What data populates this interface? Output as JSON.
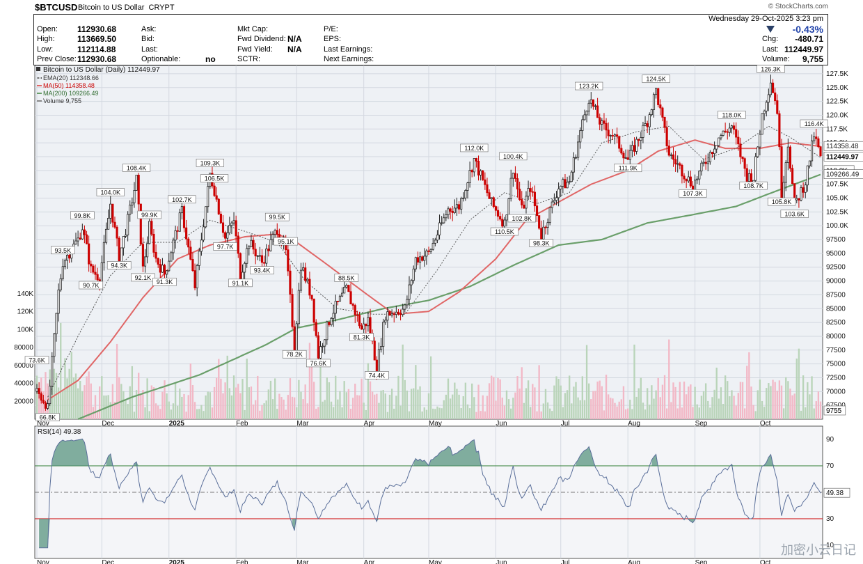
{
  "header": {
    "symbol": "$BTCUSD",
    "name": "Bitcoin to US Dollar",
    "exchange": "CRYPT",
    "watermark": "© StockCharts.com",
    "datetime": "Wednesday  29-Oct-2025  3:23 pm"
  },
  "quote": {
    "open_label": "Open:",
    "open": "112930.68",
    "high_label": "High:",
    "high": "113669.50",
    "low_label": "Low:",
    "low": "112114.88",
    "prevclose_label": "Prev Close:",
    "prevclose": "112930.68",
    "ask_label": "Ask:",
    "bid_label": "Bid:",
    "last_label_mid": "Last:",
    "optionable_label": "Optionable:",
    "optionable": "no",
    "mktcap_label": "Mkt Cap:",
    "fwddiv_label": "Fwd Dividend:",
    "fwddiv": "N/A",
    "fwdyield_label": "Fwd Yield:",
    "fwdyield": "N/A",
    "sctr_label": "SCTR:",
    "pe_label": "P/E:",
    "eps_label": "EPS:",
    "lastearn_label": "Last Earnings:",
    "nextearn_label": "Next Earnings:",
    "chg_pct": "-0.43%",
    "chg_label": "Chg:",
    "chg": "-480.71",
    "last_label": "Last:",
    "last": "112449.97",
    "volume_label": "Volume:",
    "volume": "9,755"
  },
  "colors": {
    "up": "#2e7d32",
    "down": "#cc0000",
    "ema": "#555555",
    "ma50": "#e06666",
    "ma200": "#6a9f6a",
    "rsi": "#5a6f9a",
    "rsi_fill": "#4f8f78",
    "bg_price": "#eef1f5",
    "bg_rsi": "#f4f5f8",
    "vol_up": "#b9d4b9",
    "vol_down": "#f2b8c6"
  },
  "watermark_bottom": "加密小云日记",
  "chart_data": {
    "type": "line",
    "title": "Bitcoin to US Dollar (Daily) 112449.97",
    "price_axis": {
      "ticks": [
        "127.5K",
        "125.0K",
        "122.5K",
        "120.0K",
        "117.5K",
        "115.0K",
        "112.5K",
        "110.0K",
        "107.5K",
        "105.0K",
        "102.5K",
        "100.0K",
        "97500",
        "95000",
        "92500",
        "90000",
        "87500",
        "85000",
        "82500",
        "80000",
        "77500",
        "75000",
        "72500",
        "70000",
        "67500"
      ],
      "range": [
        65000,
        129000
      ]
    },
    "volume_axis": {
      "ticks": [
        "140K",
        "120K",
        "100K",
        "80000",
        "60000",
        "40000",
        "20000"
      ],
      "range": [
        0,
        140000
      ]
    },
    "x_labels": [
      "Nov",
      "Dec",
      "2025",
      "Feb",
      "Mar",
      "Apr",
      "May",
      "Jun",
      "Jul",
      "Aug",
      "Sep",
      "Oct"
    ],
    "legend": [
      {
        "name": "EMA(20) 112348.66"
      },
      {
        "name": "MA(50) 114358.48"
      },
      {
        "name": "MA(200) 109266.49"
      },
      {
        "name": "Volume 9,755"
      }
    ],
    "series": [
      {
        "name": "Bitcoin to US Dollar (Daily) 112449.97",
        "points": [
          [
            "Nov 1",
            70000
          ],
          [
            "Nov 5",
            68000
          ],
          [
            "Nov 6",
            66800
          ],
          [
            "Nov 11",
            88000
          ],
          [
            "Nov 13",
            93500
          ],
          [
            "Nov 20",
            97500
          ],
          [
            "Nov 22",
            99800
          ],
          [
            "Nov 26",
            92000
          ],
          [
            "Nov 30",
            90700
          ],
          [
            "Dec 5",
            104000
          ],
          [
            "Dec 9",
            94300
          ],
          [
            "Dec 13",
            101000
          ],
          [
            "Dec 17",
            108400
          ],
          [
            "Dec 20",
            92100
          ],
          [
            "Dec 23",
            99900
          ],
          [
            "Dec 26",
            94000
          ],
          [
            "Dec 30",
            91300
          ],
          [
            "Jan 3",
            97000
          ],
          [
            "Jan 7",
            102700
          ],
          [
            "Jan 13",
            89000
          ],
          [
            "Jan 20",
            109300
          ],
          [
            "Jan 22",
            106500
          ],
          [
            "Jan 27",
            97700
          ],
          [
            "Jan 31",
            101000
          ],
          [
            "Feb 3",
            91100
          ],
          [
            "Feb 7",
            97000
          ],
          [
            "Feb 13",
            93400
          ],
          [
            "Feb 20",
            99500
          ],
          [
            "Feb 24",
            95100
          ],
          [
            "Feb 28",
            78200
          ],
          [
            "Mar 3",
            93000
          ],
          [
            "Mar 8",
            87000
          ],
          [
            "Mar 11",
            76600
          ],
          [
            "Mar 17",
            84000
          ],
          [
            "Mar 24",
            88500
          ],
          [
            "Mar 31",
            81300
          ],
          [
            "Apr 3",
            83000
          ],
          [
            "Apr 7",
            74400
          ],
          [
            "Apr 11",
            84000
          ],
          [
            "Apr 20",
            85000
          ],
          [
            "Apr 25",
            94000
          ],
          [
            "May 1",
            95000
          ],
          [
            "May 10",
            103000
          ],
          [
            "May 15",
            103500
          ],
          [
            "May 22",
            112000
          ],
          [
            "May 30",
            104000
          ],
          [
            "Jun 5",
            100400
          ],
          [
            "Jun 9",
            110500
          ],
          [
            "Jun 13",
            102800
          ],
          [
            "Jun 17",
            107000
          ],
          [
            "Jun 22",
            98300
          ],
          [
            "Jun 30",
            107000
          ],
          [
            "Jul 5",
            108000
          ],
          [
            "Jul 10",
            117000
          ],
          [
            "Jul 14",
            123200
          ],
          [
            "Jul 20",
            118000
          ],
          [
            "Jul 25",
            116500
          ],
          [
            "Aug 1",
            111900
          ],
          [
            "Aug 10",
            119000
          ],
          [
            "Aug 14",
            124500
          ],
          [
            "Aug 20",
            113000
          ],
          [
            "Aug 26",
            110000
          ],
          [
            "Aug 31",
            107300
          ],
          [
            "Sep 5",
            111000
          ],
          [
            "Sep 12",
            116000
          ],
          [
            "Sep 18",
            118000
          ],
          [
            "Sep 25",
            109000
          ],
          [
            "Sep 28",
            108700
          ],
          [
            "Oct 2",
            120000
          ],
          [
            "Oct 6",
            126300
          ],
          [
            "Oct 9",
            121000
          ],
          [
            "Oct 11",
            105800
          ],
          [
            "Oct 14",
            115000
          ],
          [
            "Oct 17",
            103600
          ],
          [
            "Oct 22",
            108000
          ],
          [
            "Oct 26",
            116400
          ],
          [
            "Oct 29",
            112449.97
          ]
        ]
      },
      {
        "name": "EMA(20) 112348.66",
        "points": [
          [
            "Nov 6",
            69000
          ],
          [
            "Nov 20",
            80000
          ],
          [
            "Dec 5",
            91000
          ],
          [
            "Dec 20",
            97000
          ],
          [
            "Jan 5",
            97000
          ],
          [
            "Jan 20",
            101000
          ],
          [
            "Feb 5",
            99000
          ],
          [
            "Feb 20",
            97000
          ],
          [
            "Mar 5",
            90000
          ],
          [
            "Mar 20",
            85000
          ],
          [
            "Apr 5",
            84000
          ],
          [
            "Apr 20",
            84000
          ],
          [
            "May 5",
            92000
          ],
          [
            "May 20",
            101000
          ],
          [
            "Jun 5",
            106000
          ],
          [
            "Jun 20",
            104000
          ],
          [
            "Jul 5",
            106000
          ],
          [
            "Jul 20",
            115000
          ],
          [
            "Aug 5",
            117000
          ],
          [
            "Aug 20",
            118000
          ],
          [
            "Sep 5",
            112000
          ],
          [
            "Sep 20",
            114000
          ],
          [
            "Oct 5",
            118000
          ],
          [
            "Oct 15",
            116000
          ],
          [
            "Oct 29",
            112348.66
          ]
        ]
      },
      {
        "name": "MA(50) 114358.48",
        "points": [
          [
            "Nov 6",
            68500
          ],
          [
            "Nov 20",
            72000
          ],
          [
            "Dec 5",
            79000
          ],
          [
            "Dec 20",
            87000
          ],
          [
            "Jan 5",
            94000
          ],
          [
            "Jan 20",
            96500
          ],
          [
            "Feb 5",
            98000
          ],
          [
            "Feb 20",
            98500
          ],
          [
            "Mar 1",
            97000
          ],
          [
            "Mar 15",
            93000
          ],
          [
            "Apr 1",
            88000
          ],
          [
            "Apr 15",
            84000
          ],
          [
            "May 1",
            84500
          ],
          [
            "May 15",
            88000
          ],
          [
            "Jun 1",
            94000
          ],
          [
            "Jun 15",
            101000
          ],
          [
            "Jul 1",
            104500
          ],
          [
            "Jul 15",
            107500
          ],
          [
            "Aug 1",
            110000
          ],
          [
            "Aug 15",
            113500
          ],
          [
            "Sep 1",
            115500
          ],
          [
            "Sep 15",
            114000
          ],
          [
            "Oct 1",
            114000
          ],
          [
            "Oct 15",
            115000
          ],
          [
            "Oct 29",
            114358.48
          ]
        ]
      },
      {
        "name": "MA(200) 109266.49",
        "points": [
          [
            "Nov 20",
            65000
          ],
          [
            "Dec 15",
            69000
          ],
          [
            "Jan 15",
            73000
          ],
          [
            "Feb 15",
            78500
          ],
          [
            "Mar 1",
            81500
          ],
          [
            "Mar 20",
            83000
          ],
          [
            "Apr 10",
            85000
          ],
          [
            "May 1",
            86500
          ],
          [
            "May 20",
            89000
          ],
          [
            "Jun 10",
            93000
          ],
          [
            "Jun 30",
            96500
          ],
          [
            "Jul 20",
            97500
          ],
          [
            "Aug 10",
            100500
          ],
          [
            "Aug 31",
            102000
          ],
          [
            "Sep 20",
            103500
          ],
          [
            "Oct 10",
            106500
          ],
          [
            "Oct 29",
            109266.49
          ]
        ]
      }
    ],
    "price_labels": [
      "73.6K",
      "66.8K",
      "93.5K",
      "90.7K",
      "99.8K",
      "104.0K",
      "94.3K",
      "108.4K",
      "92.1K",
      "99.9K",
      "91.3K",
      "102.7K",
      "109.3K",
      "106.5K",
      "97.7K",
      "91.1K",
      "99.5K",
      "93.4K",
      "95.1K",
      "78.2K",
      "76.6K",
      "88.5K",
      "81.3K",
      "74.4K",
      "112.0K",
      "110.5K",
      "100.4K",
      "102.8K",
      "98.3K",
      "123.2K",
      "124.5K",
      "111.9K",
      "118.0K",
      "107.3K",
      "126.3K",
      "108.7K",
      "105.8K",
      "103.6K",
      "116.4K"
    ],
    "right_labels": {
      "ma50": "114358.48",
      "last": "112449.97",
      "ma200": "109266.49",
      "volume": "9755",
      "ma200_partial": "110.0K"
    },
    "rsi": {
      "title": "RSI(14) 49.38",
      "ticks": [
        "90",
        "70",
        "50",
        "30",
        "10"
      ],
      "range": [
        0,
        100
      ],
      "last": "49.38",
      "lines": [
        70,
        50,
        30
      ]
    }
  }
}
